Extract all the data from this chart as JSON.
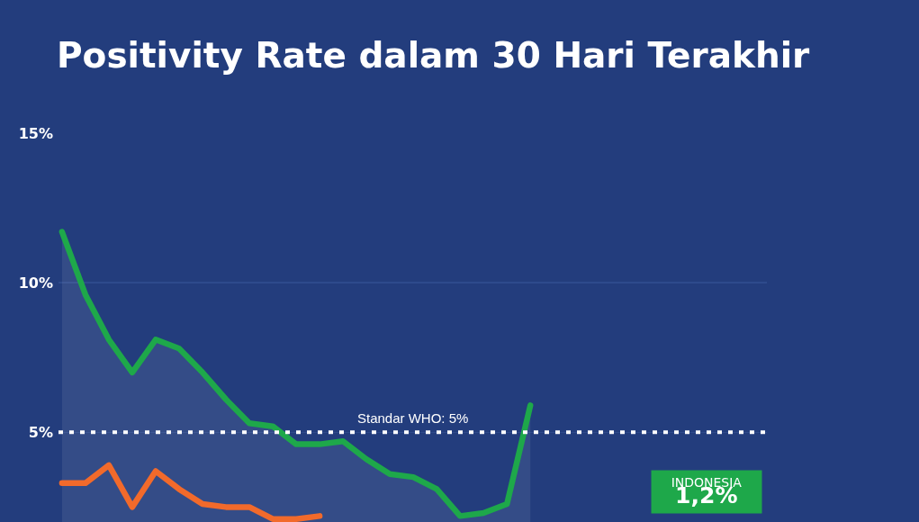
{
  "chart_data": {
    "type": "area",
    "title": "Positivity Rate dalam 30 Hari Terakhir",
    "categories": [
      null,
      null,
      null,
      null,
      null,
      null,
      null,
      null,
      null,
      null,
      null,
      null,
      null,
      null,
      null,
      null,
      null,
      null,
      null,
      null,
      null,
      null,
      null,
      null,
      null,
      null,
      null,
      null,
      null,
      null
    ],
    "series": [
      {
        "color": "#1ea84a",
        "values": [
          11.7,
          9.6,
          8.1,
          7.0,
          8.1,
          7.8,
          7.0,
          6.1,
          5.3,
          5.2,
          4.6,
          4.6,
          4.7,
          4.1,
          3.6,
          3.5,
          3.1,
          2.2,
          2.3,
          2.6,
          5.9,
          null,
          null,
          null,
          null,
          null,
          null,
          null,
          null,
          null
        ]
      },
      {
        "type": "line",
        "color": "#f26a2b",
        "values": [
          3.3,
          3.3,
          3.9,
          2.5,
          3.7,
          3.1,
          2.6,
          2.5,
          2.5,
          2.1,
          2.1,
          2.2,
          null,
          null,
          null,
          null,
          null,
          null,
          null,
          null,
          null,
          null,
          null,
          null,
          null,
          null,
          null,
          null,
          null,
          null
        ]
      }
    ],
    "ylim": [
      2,
      15
    ],
    "yticks": [
      {
        "value": 5,
        "label": "5%"
      },
      {
        "value": 10,
        "label": "10%"
      },
      {
        "value": 15,
        "label": "15%"
      }
    ],
    "grid": "y",
    "ref_lines": [
      {
        "axis": "y",
        "value": 5,
        "label": "Standar WHO: 5%",
        "color": "#ffffff",
        "line_style": "dotted"
      }
    ],
    "annotations": [
      "INDONESIA\n1,2%"
    ]
  }
}
